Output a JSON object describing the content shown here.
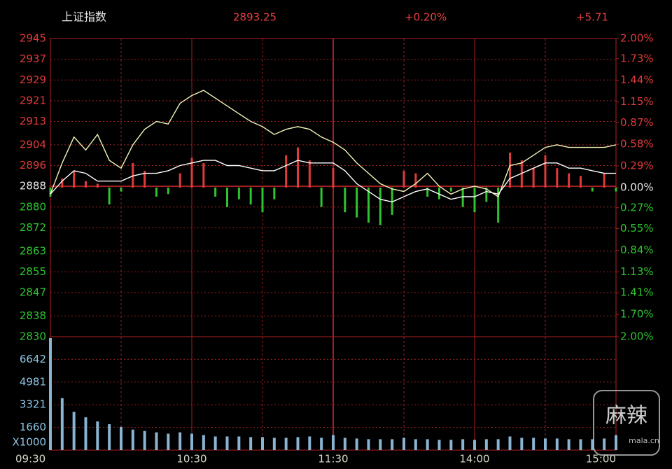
{
  "chart_data": [
    {
      "type": "line",
      "title": "上证指数",
      "price": "2893.25",
      "change_pct": "+0.20%",
      "change": "+5.71",
      "categories": [
        "09:30",
        null,
        null,
        null,
        null,
        null,
        null,
        null,
        null,
        null,
        null,
        null,
        "10:30",
        null,
        null,
        null,
        null,
        null,
        null,
        null,
        null,
        null,
        null,
        null,
        "11:30",
        null,
        null,
        null,
        null,
        null,
        null,
        null,
        null,
        null,
        null,
        null,
        "14:00",
        null,
        null,
        null,
        null,
        null,
        null,
        null,
        null,
        null,
        null,
        null,
        "15:00"
      ],
      "series": [
        {
          "color": "#f2f2b8",
          "values": [
            2885,
            2897,
            2907,
            2902,
            2908,
            2898,
            2895,
            2904,
            2910,
            2913,
            2912,
            2920,
            2923,
            2925,
            2922,
            2919,
            2916,
            2913,
            2911,
            2908,
            2910,
            2911,
            2910,
            2907,
            2905,
            2902,
            2897,
            2893,
            2889,
            2887,
            2886,
            2889,
            2893,
            2888,
            2885,
            2887,
            2888,
            2887,
            2884,
            2896,
            2897,
            2900,
            2903,
            2904,
            2903,
            2903,
            2903,
            2903,
            2904
          ]
        },
        {
          "color": "#ffffff",
          "values": [
            2885,
            2890,
            2894,
            2893,
            2890,
            2890,
            2890,
            2892,
            2893,
            2893,
            2894,
            2896,
            2897,
            2898,
            2898,
            2896,
            2896,
            2895,
            2894,
            2894,
            2896,
            2898,
            2897,
            2897,
            2897,
            2894,
            2889,
            2886,
            2883,
            2882,
            2884,
            2886,
            2887,
            2885,
            2883,
            2884,
            2884,
            2886,
            2885,
            2891,
            2893,
            2895,
            2897,
            2897,
            2895,
            2895,
            2894,
            2893,
            2893
          ]
        }
      ],
      "bars": {
        "up_color": "#e03a3a",
        "down_color": "#2fc42f",
        "values": [
          2884,
          2891,
          2894,
          2890,
          2889,
          2881,
          2886,
          2897,
          2894,
          2884,
          2885,
          2893,
          2899,
          2897,
          2884,
          2880,
          2883,
          2881,
          2878,
          2883,
          2900,
          2903,
          2898,
          2880,
          2895,
          2878,
          2876,
          2874,
          2873,
          2877,
          2894,
          2893,
          2884,
          2883,
          2886,
          2880,
          2878,
          2882,
          2874,
          2901,
          2898,
          2895,
          2900,
          2895,
          2893,
          2892,
          2886,
          2893,
          2886
        ]
      },
      "ylim": [
        2830,
        2945
      ],
      "yticks": [
        2945,
        2937,
        2929,
        2921,
        2913,
        2904,
        2896,
        2888,
        2880,
        2872,
        2863,
        2855,
        2847,
        2838,
        2830
      ],
      "y2lim": [
        -2,
        2
      ],
      "y2ticks": [
        {
          "value": 2,
          "label": "2.00%"
        },
        {
          "value": 1.73,
          "label": "1.73%"
        },
        {
          "value": 1.44,
          "label": "1.44%"
        },
        {
          "value": 1.15,
          "label": "1.15%"
        },
        {
          "value": 0.87,
          "label": "0.87%"
        },
        {
          "value": 0.58,
          "label": "0.58%"
        },
        {
          "value": 0.29,
          "label": "0.29%"
        },
        {
          "value": 0,
          "label": "0.00%"
        },
        {
          "value": -0.27,
          "label": "0.27%"
        },
        {
          "value": -0.55,
          "label": "0.55%"
        },
        {
          "value": -0.84,
          "label": "0.84%"
        },
        {
          "value": -1.13,
          "label": "1.13%"
        },
        {
          "value": -1.41,
          "label": "1.41%"
        },
        {
          "value": -1.7,
          "label": "1.70%"
        },
        {
          "value": -2,
          "label": "2.00%"
        }
      ]
    },
    {
      "type": "bar",
      "color": "#8ab4d2",
      "unit_label": "X1000",
      "values": [
        8200,
        3800,
        2800,
        2400,
        2100,
        1900,
        1700,
        1500,
        1400,
        1300,
        1200,
        1300,
        1200,
        1100,
        1000,
        1000,
        1000,
        950,
        950,
        900,
        900,
        950,
        1000,
        900,
        1100,
        900,
        850,
        800,
        800,
        800,
        900,
        800,
        800,
        750,
        750,
        800,
        750,
        800,
        800,
        1000,
        900,
        900,
        850,
        850,
        800,
        800,
        800,
        850,
        1100
      ],
      "ylim": [
        0,
        8302
      ],
      "yticks": [
        1660,
        3321,
        4981,
        6642
      ]
    }
  ],
  "watermark": {
    "text": "麻辣",
    "site": "mala.cn"
  }
}
